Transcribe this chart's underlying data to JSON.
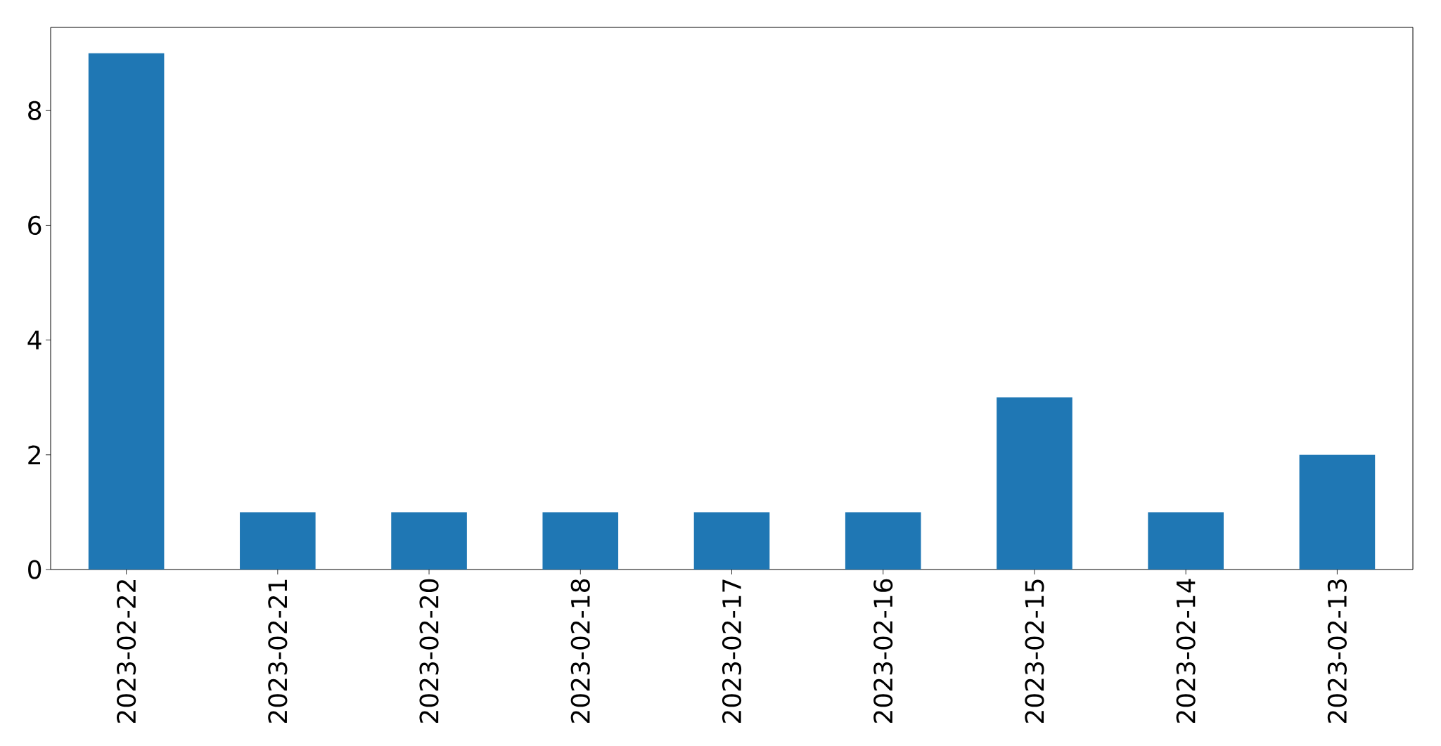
{
  "chart_data": {
    "type": "bar",
    "categories": [
      "2023-02-22",
      "2023-02-21",
      "2023-02-20",
      "2023-02-18",
      "2023-02-17",
      "2023-02-16",
      "2023-02-15",
      "2023-02-14",
      "2023-02-13"
    ],
    "values": [
      9,
      1,
      1,
      1,
      1,
      1,
      3,
      1,
      2
    ],
    "color": "#1f77b4",
    "ylim": [
      0,
      9.45
    ],
    "yticks": [
      0,
      2,
      4,
      6,
      8
    ]
  }
}
